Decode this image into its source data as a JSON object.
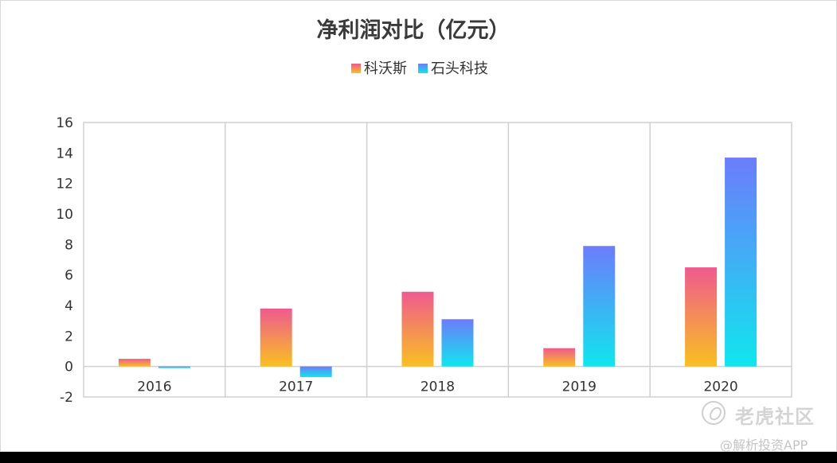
{
  "chart_data": {
    "type": "bar",
    "title": "净利润对比（亿元）",
    "categories": [
      "2016",
      "2017",
      "2018",
      "2019",
      "2020"
    ],
    "series": [
      {
        "name": "科沃斯",
        "values": [
          0.5,
          3.8,
          4.9,
          1.2,
          6.5
        ],
        "gradient": [
          "#ef5a8f",
          "#f9c021"
        ]
      },
      {
        "name": "石头科技",
        "values": [
          -0.1,
          -0.7,
          3.1,
          7.9,
          13.7
        ],
        "gradient": [
          "#6c7cfb",
          "#10e6ee"
        ]
      }
    ],
    "y_ticks": [
      "16",
      "14",
      "12",
      "10",
      "8",
      "6",
      "4",
      "2",
      "0",
      "-2"
    ],
    "ylim": [
      -2,
      16
    ],
    "grid": true,
    "legend_position": "top-center"
  },
  "watermark": {
    "brand": "老虎社区",
    "sub": "@解析投资APP",
    "icon": "tiger-logo-icon"
  }
}
